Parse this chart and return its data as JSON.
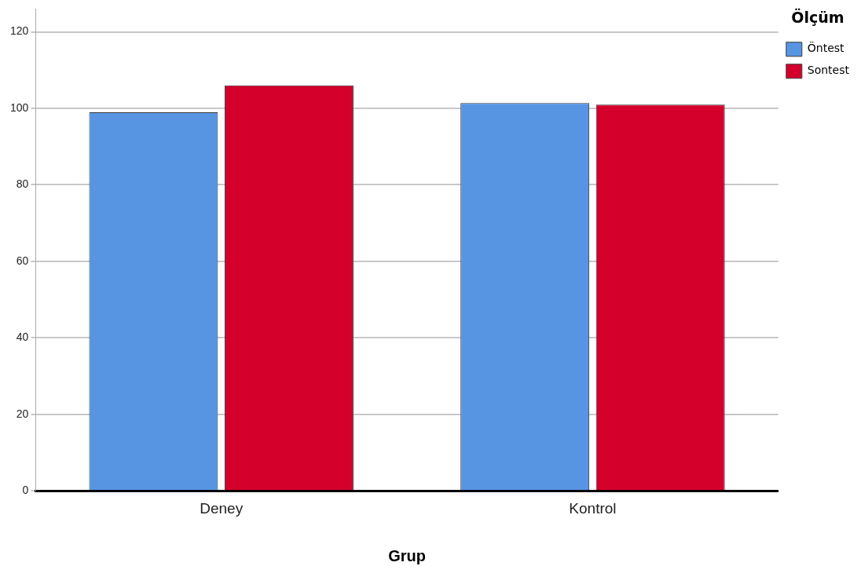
{
  "chart_data": {
    "type": "bar",
    "xlabel": "Grup",
    "legend_title": "Ölçüm",
    "categories": [
      "Deney",
      "Kontrol"
    ],
    "series": [
      {
        "name": "Öntest",
        "color": "#5795e3",
        "values": [
          99,
          101.4
        ]
      },
      {
        "name": "Sontest",
        "color": "#d4002b",
        "values": [
          106,
          101
        ]
      }
    ],
    "ylim": [
      0,
      126
    ],
    "yticks": [
      0,
      20,
      40,
      60,
      80,
      100,
      120
    ],
    "grid": "y",
    "legend": "top right"
  }
}
